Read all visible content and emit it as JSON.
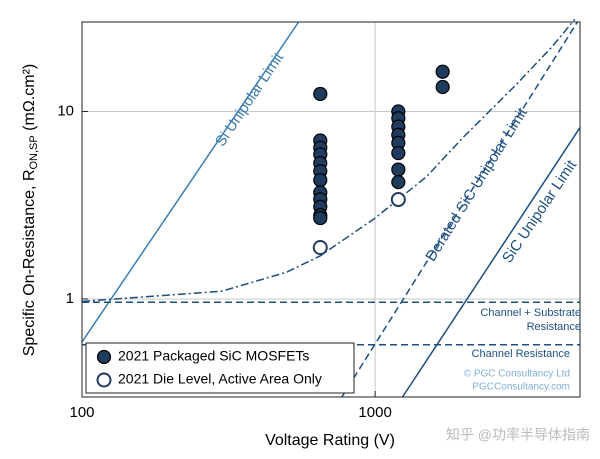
{
  "chart_data": {
    "type": "scatter",
    "xlabel": "Voltage Rating (V)",
    "ylabel": {
      "main": "Specific On-Resistance, R",
      "sub": "ON,SP",
      "unit": " (mΩ.cm²)"
    },
    "xscale": "log",
    "yscale": "log",
    "xlim": [
      100,
      5000
    ],
    "ylim": [
      0.3,
      30
    ],
    "xticks": [
      100,
      1000
    ],
    "yticks": [
      1,
      10
    ],
    "grid": true,
    "legend": "lower left",
    "series": [
      {
        "name": "2021 Packaged SiC MOSFETs",
        "type": "scatter",
        "marker": "filled",
        "color": "#1f3b5e",
        "x": [
          650,
          650,
          650,
          650,
          650,
          650,
          650,
          650,
          650,
          650,
          650,
          650,
          1200,
          1200,
          1200,
          1200,
          1200,
          1200,
          1200,
          1200,
          1700,
          1700
        ],
        "values": [
          12.4,
          7.0,
          6.4,
          5.9,
          5.3,
          4.8,
          4.3,
          3.7,
          3.4,
          3.1,
          2.8,
          2.7,
          10,
          9.2,
          8.3,
          7.5,
          6.8,
          6.0,
          4.9,
          4.2,
          16.3,
          13.5
        ]
      },
      {
        "name": "2021 Die Level, Active Area Only",
        "type": "scatter",
        "marker": "open",
        "color": "#1f3b5e",
        "x": [
          650,
          1200
        ],
        "values": [
          1.88,
          3.39
        ]
      }
    ],
    "lines": [
      {
        "x": [
          100,
          548
        ],
        "values": [
          0.59,
          30
        ],
        "color": "#3a7db3",
        "dash": "solid"
      },
      {
        "x": [
          770,
          4900
        ],
        "values": [
          0.3,
          30
        ],
        "color": "#1e4f80",
        "dash": "dashed"
      },
      {
        "x": [
          1240,
          5000
        ],
        "values": [
          0.3,
          8.2
        ],
        "color": "#1e4f80",
        "dash": "solid"
      },
      {
        "x": [
          100,
          300,
          500,
          650,
          1000,
          1500,
          2000,
          3000,
          4000,
          4800
        ],
        "values": [
          0.97,
          1.1,
          1.39,
          1.7,
          2.7,
          4.5,
          7.3,
          13.7,
          22,
          31
        ],
        "color": "#1e4f80",
        "dash": "dashdot"
      },
      {
        "x": [
          100,
          5000
        ],
        "values": [
          0.96,
          0.96
        ],
        "color": "#1e4f80",
        "dash": "dashed"
      },
      {
        "x": [
          100,
          5000
        ],
        "values": [
          0.57,
          0.57
        ],
        "color": "#1e4f80",
        "dash": "dashed"
      }
    ],
    "annotations": [
      {
        "text": "Si Unipolar Limit"
      },
      {
        "text": "Derated SiC Unipolar Limit"
      },
      {
        "text": "SiC Unipolar Limit"
      },
      {
        "text": "Channel + Substrate"
      },
      {
        "text": "Resistance"
      },
      {
        "text": "Channel Resistance"
      },
      {
        "text": "© PGC Consultancy Ltd"
      },
      {
        "text": "PGCConsultancy.com"
      }
    ],
    "watermark": "知乎 @功率半导体指南"
  }
}
